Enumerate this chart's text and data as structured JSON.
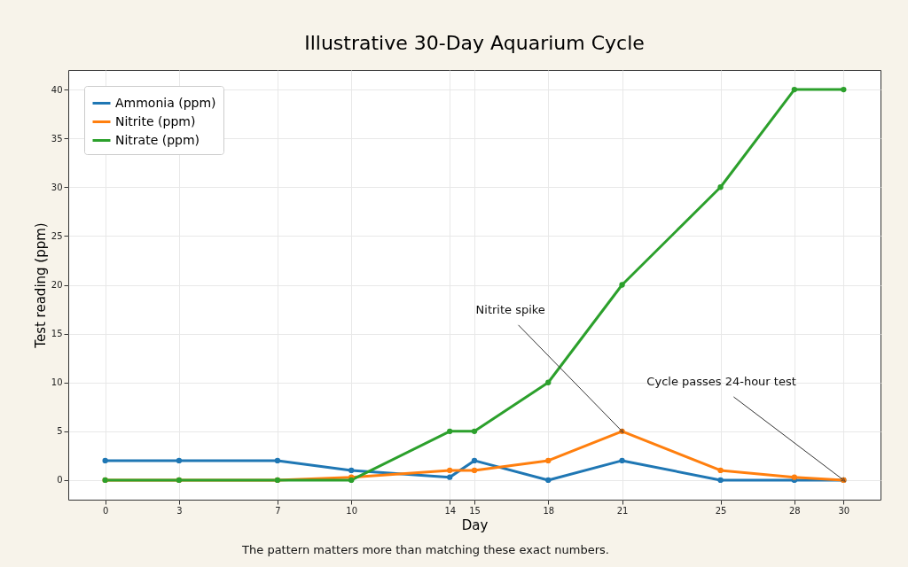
{
  "chart_data": {
    "type": "line",
    "title": "Illustrative 30-Day Aquarium Cycle",
    "xlabel": "Day",
    "ylabel": "Test reading (ppm)",
    "x": [
      0,
      3,
      7,
      10,
      14,
      15,
      18,
      21,
      25,
      28,
      30
    ],
    "series": [
      {
        "name": "Ammonia (ppm)",
        "color": "#1f77b4",
        "values": [
          2,
          2,
          2,
          1,
          0.3,
          2,
          0,
          2,
          0,
          0,
          0
        ]
      },
      {
        "name": "Nitrite (ppm)",
        "color": "#ff7f0e",
        "values": [
          0,
          0,
          0,
          0.3,
          1,
          1,
          2,
          5,
          1,
          0.3,
          0
        ]
      },
      {
        "name": "Nitrate (ppm)",
        "color": "#2ca02c",
        "values": [
          0,
          0,
          0,
          0,
          5,
          5,
          10,
          20,
          30,
          40,
          40
        ]
      }
    ],
    "xlim": [
      -1.5,
      31.5
    ],
    "xticks": [
      0,
      3,
      7,
      10,
      14,
      15,
      18,
      21,
      25,
      28,
      30
    ],
    "ylim": [
      -2,
      42
    ],
    "yticks": [
      0,
      5,
      10,
      15,
      20,
      25,
      30,
      35,
      40
    ],
    "annotations": [
      {
        "text": "Nitrite spike",
        "x": 21,
        "y": 5
      },
      {
        "text": "Cycle passes 24-hour test",
        "x": 30,
        "y": 0
      },
      "The pattern matters more than matching these exact numbers."
    ],
    "grid": true,
    "legend": "top left",
    "marker": "circle",
    "line_style": "solid"
  }
}
